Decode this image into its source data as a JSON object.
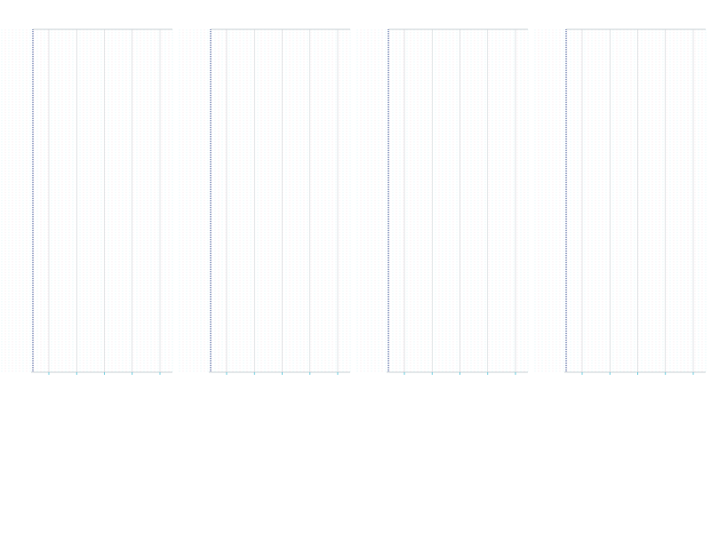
{
  "colors": {
    "background": "#ffffff",
    "grid_cyan": "#dcf3f7",
    "grid_pink": "#f6e4e9",
    "axis_navy": "#1c3d8a",
    "axis_grey": "#b9c3c9",
    "accent_cyan": "#4fc3d9",
    "text_grey": "#8a8a8a"
  },
  "chart_data": [
    {
      "type": "bar",
      "panel": 1,
      "title": "",
      "xlabel": "",
      "ylabel": "",
      "x_ticks": [
        1,
        2,
        3,
        4,
        5
      ],
      "x_tick_labels": [
        "",
        "",
        "",
        "",
        ""
      ],
      "grid": true,
      "series": []
    },
    {
      "type": "bar",
      "panel": 2,
      "title": "",
      "xlabel": "",
      "ylabel": "",
      "x_ticks": [
        1,
        2,
        3,
        4,
        5
      ],
      "x_tick_labels": [
        "",
        "",
        "",
        "",
        ""
      ],
      "grid": true,
      "series": []
    },
    {
      "type": "bar",
      "panel": 3,
      "title": "",
      "xlabel": "",
      "ylabel": "",
      "x_ticks": [
        1,
        2,
        3,
        4,
        5
      ],
      "x_tick_labels": [
        "",
        "",
        "",
        "",
        ""
      ],
      "grid": true,
      "series": []
    },
    {
      "type": "bar",
      "panel": 4,
      "title": "",
      "xlabel": "",
      "ylabel": "",
      "x_ticks": [
        1,
        2,
        3,
        4,
        5
      ],
      "x_tick_labels": [
        "",
        "",
        "",
        "",
        ""
      ],
      "grid": true,
      "series": []
    }
  ]
}
